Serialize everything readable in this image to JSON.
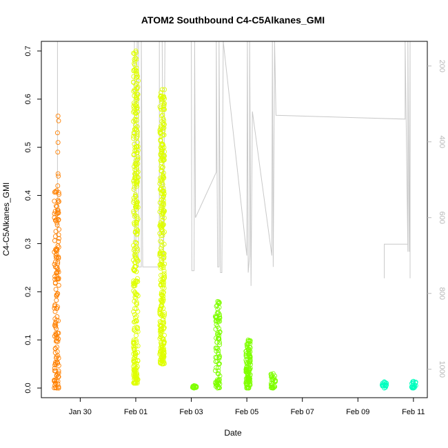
{
  "chart_data": {
    "type": "scatter",
    "title": "ATOM2 Southbound C4-C5Alkanes_GMI",
    "xlabel": "Date",
    "ylabel": "C4-C5Alkanes_GMI",
    "x_ticks": [
      "Jan 30",
      "Feb 01",
      "Feb 03",
      "Feb 05",
      "Feb 07",
      "Feb 09",
      "Feb 11"
    ],
    "x_tick_days": [
      30,
      32,
      34,
      36,
      38,
      40,
      42
    ],
    "xlim_days": [
      28.6,
      42.5
    ],
    "ylim": [
      -0.02,
      0.72
    ],
    "y_ticks": [
      0.0,
      0.1,
      0.2,
      0.3,
      0.4,
      0.5,
      0.6,
      0.7
    ],
    "y2_ticks": [
      200,
      400,
      600,
      800,
      1000
    ],
    "y2lim": [
      1075,
      135
    ],
    "y2_color": "#b8b8b8",
    "grid": false,
    "series": [
      {
        "color": "#ff8000",
        "clusters": [
          {
            "x": 29.15,
            "ymin": 0.0,
            "ymax": 0.41,
            "n": 150
          }
        ],
        "outliers": [
          {
            "x": 29.2,
            "y": 0.565
          },
          {
            "x": 29.22,
            "y": 0.555
          },
          {
            "x": 29.18,
            "y": 0.53
          },
          {
            "x": 29.2,
            "y": 0.51
          },
          {
            "x": 29.19,
            "y": 0.49
          },
          {
            "x": 29.2,
            "y": 0.445
          },
          {
            "x": 29.21,
            "y": 0.44
          },
          {
            "x": 29.19,
            "y": 0.42
          }
        ]
      },
      {
        "color": "#dfff00",
        "clusters": [
          {
            "x": 32.0,
            "ymin": 0.01,
            "ymax": 0.7,
            "n": 320
          },
          {
            "x": 32.95,
            "ymin": 0.05,
            "ymax": 0.62,
            "n": 320
          }
        ],
        "outliers": []
      },
      {
        "color": "#7fff00",
        "clusters": [
          {
            "x": 34.1,
            "ymin": 0.0,
            "ymax": 0.005,
            "n": 15
          },
          {
            "x": 34.95,
            "ymin": 0.0,
            "ymax": 0.18,
            "n": 90
          },
          {
            "x": 36.05,
            "ymin": 0.0,
            "ymax": 0.1,
            "n": 110
          },
          {
            "x": 36.95,
            "ymin": 0.0,
            "ymax": 0.03,
            "n": 30
          }
        ],
        "outliers": []
      },
      {
        "color": "#00ffbf",
        "clusters": [
          {
            "x": 40.95,
            "ymin": 0.0,
            "ymax": 0.013,
            "n": 15
          },
          {
            "x": 42.0,
            "ymin": 0.0,
            "ymax": 0.014,
            "n": 18
          }
        ],
        "outliers": []
      }
    ],
    "altitude_path": [
      [
        29.18,
        660
      ],
      [
        29.18,
        135
      ],
      [
        29.2,
        135
      ],
      [
        31.95,
        135
      ],
      [
        31.95,
        700
      ],
      [
        32.0,
        700
      ],
      [
        32.05,
        135
      ],
      [
        32.1,
        135
      ],
      [
        32.1,
        730
      ],
      [
        32.2,
        730
      ],
      [
        32.2,
        135
      ],
      [
        32.25,
        730
      ],
      [
        32.85,
        730
      ],
      [
        32.85,
        135
      ],
      [
        32.95,
        135
      ],
      [
        33.0,
        730
      ],
      [
        33.05,
        135
      ],
      [
        34.0,
        135
      ],
      [
        34.02,
        740
      ],
      [
        34.1,
        740
      ],
      [
        34.12,
        135
      ],
      [
        34.15,
        600
      ],
      [
        34.9,
        480
      ],
      [
        34.9,
        135
      ],
      [
        34.95,
        730
      ],
      [
        35.0,
        730
      ],
      [
        35.0,
        135
      ],
      [
        35.05,
        745
      ],
      [
        35.1,
        745
      ],
      [
        35.15,
        135
      ],
      [
        36.0,
        700
      ],
      [
        36.02,
        135
      ],
      [
        36.05,
        745
      ],
      [
        36.1,
        700
      ],
      [
        36.1,
        135
      ],
      [
        36.15,
        780
      ],
      [
        36.2,
        320
      ],
      [
        36.9,
        700
      ],
      [
        36.92,
        135
      ],
      [
        36.95,
        730
      ],
      [
        37.0,
        135
      ],
      [
        37.05,
        330
      ],
      [
        41.7,
        340
      ],
      [
        41.7,
        135
      ],
      [
        41.8,
        690
      ],
      [
        41.8,
        135
      ],
      [
        41.85,
        690
      ],
      [
        41.88,
        135
      ],
      [
        41.88,
        760
      ]
    ],
    "altitude_extra": [
      [
        40.95,
        760
      ],
      [
        40.95,
        670
      ],
      [
        41.8,
        670
      ]
    ]
  }
}
